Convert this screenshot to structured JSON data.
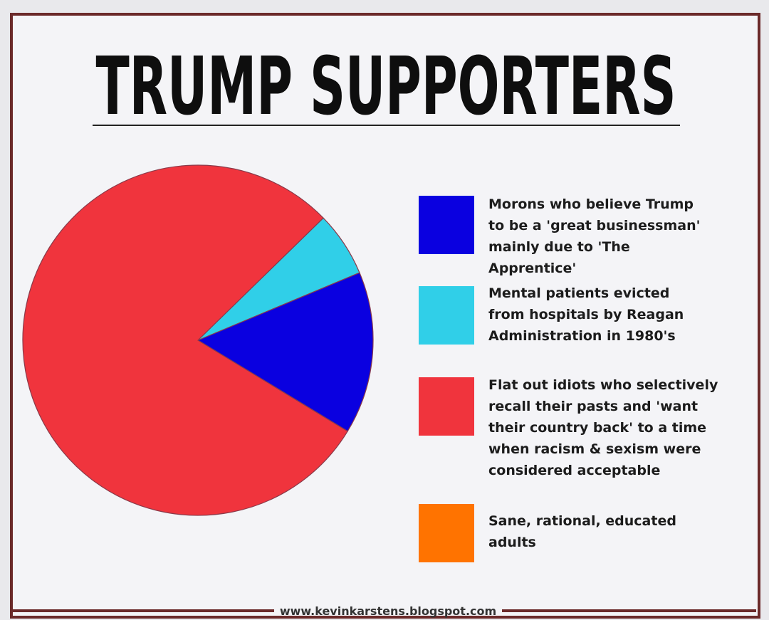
{
  "chart_data": {
    "type": "pie",
    "title": "TRUMP SUPPORTERS",
    "categories": [
      "Morons who believe Trump to be a 'great businessman' mainly due to 'The Apprentice'",
      "Mental patients evicted from hospitals by Reagan Administration in 1980's",
      "Flat out idiots who selectively recall their pasts and 'want their country back' to a time when racism & sexism were considered acceptable",
      "Sane, rational, educated adults"
    ],
    "values": [
      15,
      6,
      79,
      0
    ],
    "colors": [
      "#0a00e0",
      "#30cfe8",
      "#f0343d",
      "#ff7300"
    ],
    "source": "www.kevinkarstens.blogspot.com"
  }
}
